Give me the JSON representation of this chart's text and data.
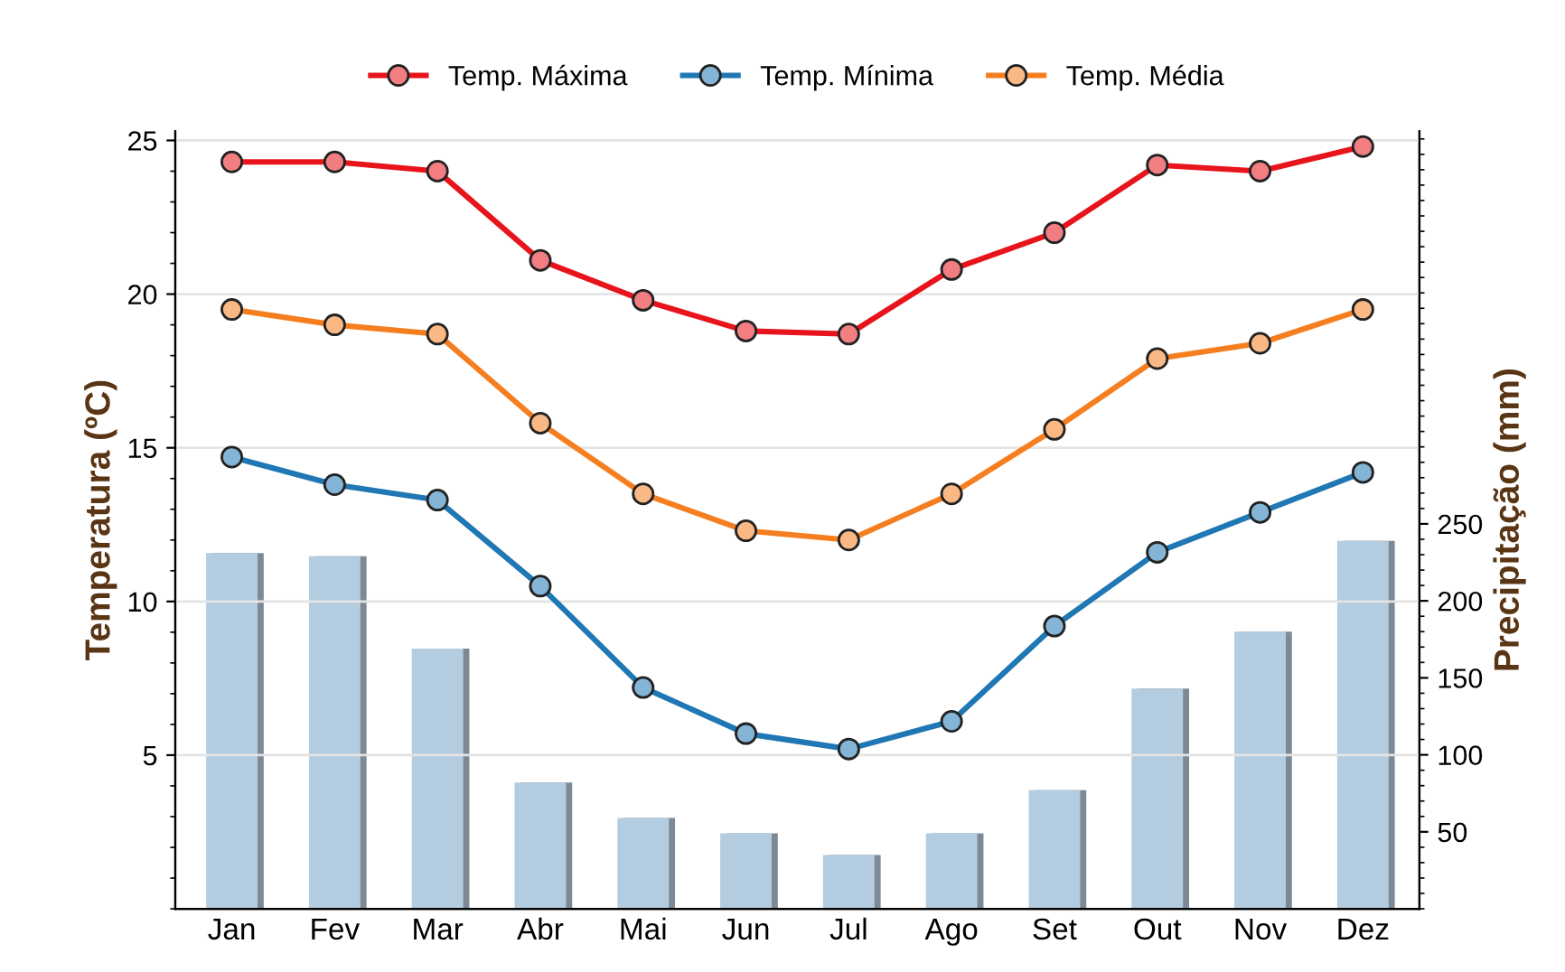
{
  "chart_data": {
    "type": "line",
    "categories": [
      "Jan",
      "Fev",
      "Mar",
      "Abr",
      "Mai",
      "Jun",
      "Jul",
      "Ago",
      "Set",
      "Out",
      "Nov",
      "Dez"
    ],
    "ylabel": "Temperatura (ºC)",
    "y2label": "Precipitação (mm)",
    "ylim": [
      0,
      25.3
    ],
    "yticks": [
      5,
      10,
      15,
      20,
      25
    ],
    "y2lim": [
      0,
      505
    ],
    "y2ticks": [
      50,
      100,
      150,
      200,
      250
    ],
    "grid": "y",
    "legend": "top",
    "marker": "circle",
    "line_style": "solid",
    "series": [
      {
        "type": "bar",
        "axis": "y2",
        "color": "#b4cce0",
        "values": [
          231,
          229,
          169,
          82,
          59,
          49,
          35,
          49,
          77,
          143,
          180,
          239
        ]
      },
      {
        "name": "Temp. Máxima",
        "color": "#e8141c",
        "values": [
          24.3,
          24.3,
          24.0,
          21.1,
          19.8,
          18.8,
          18.7,
          20.8,
          22.0,
          24.2,
          24.0,
          24.8
        ]
      },
      {
        "name": "Temp. Mínima",
        "color": "#1f77b4",
        "values": [
          14.7,
          13.8,
          13.3,
          10.5,
          7.2,
          5.7,
          5.2,
          6.1,
          9.2,
          11.6,
          12.9,
          14.2
        ]
      },
      {
        "name": "Temp. Média",
        "color": "#f57f20",
        "values": [
          19.5,
          19.0,
          18.7,
          15.8,
          13.5,
          12.3,
          12.0,
          13.5,
          15.6,
          17.9,
          18.4,
          19.5
        ]
      }
    ]
  }
}
